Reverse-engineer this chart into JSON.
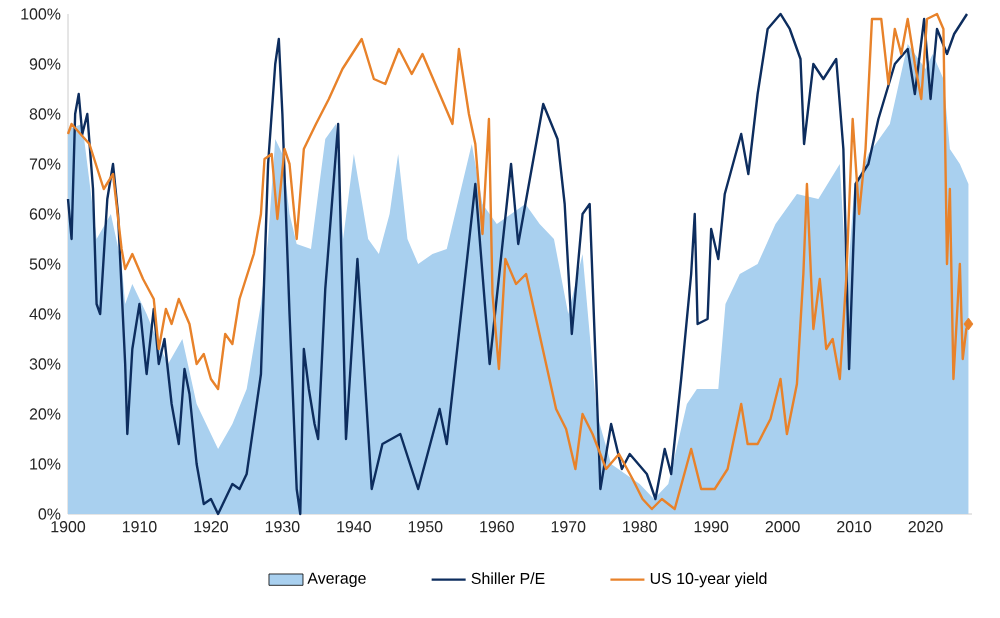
{
  "chart_data": {
    "type": "line",
    "xlim": [
      1900,
      2026.5
    ],
    "ylim": [
      0,
      100
    ],
    "xticks": [
      1900,
      1910,
      1920,
      1930,
      1940,
      1950,
      1960,
      1970,
      1980,
      1990,
      2000,
      2010,
      2020
    ],
    "yticks": [
      {
        "value": 0,
        "label": "0%"
      },
      {
        "value": 10,
        "label": "10%"
      },
      {
        "value": 20,
        "label": "20%"
      },
      {
        "value": 30,
        "label": "30%"
      },
      {
        "value": 40,
        "label": "40%"
      },
      {
        "value": 50,
        "label": "50%"
      },
      {
        "value": 60,
        "label": "60%"
      },
      {
        "value": 70,
        "label": "70%"
      },
      {
        "value": 80,
        "label": "80%"
      },
      {
        "value": 90,
        "label": "90%"
      },
      {
        "value": 100,
        "label": "100%"
      }
    ],
    "legend": "bottom",
    "grid": false,
    "series": [
      {
        "name": "Average",
        "type": "area",
        "color": "#a9d0ef",
        "x": [
          1900,
          1902,
          1904,
          1906,
          1907.5,
          1908,
          1909,
          1911,
          1913,
          1914,
          1916,
          1918,
          1920,
          1921,
          1923,
          1925,
          1927,
          1928,
          1929,
          1930,
          1931,
          1932,
          1934,
          1936,
          1937.5,
          1938.5,
          1940,
          1942,
          1943.5,
          1945,
          1946.2,
          1947.5,
          1949,
          1951,
          1953,
          1955,
          1956.5,
          1958,
          1960,
          1962,
          1964,
          1966,
          1968,
          1970,
          1972,
          1974,
          1976,
          1978,
          1980,
          1982,
          1984,
          1986.6,
          1988,
          1991,
          1992,
          1994,
          1996.5,
          1999,
          2002,
          2005,
          2008,
          2009,
          2010,
          2012,
          2015,
          2017.5,
          2020,
          2021,
          2022.5,
          2023.4,
          2024.8,
          2026
        ],
        "values": [
          77,
          78,
          55,
          60,
          50,
          42,
          46,
          40,
          33,
          30,
          35,
          22,
          16,
          13,
          18,
          25,
          42,
          55,
          75,
          72,
          60,
          54,
          53,
          75,
          78,
          55,
          72,
          55,
          52,
          60,
          72,
          55,
          50,
          52,
          53,
          65,
          74,
          62,
          58,
          60,
          62,
          58,
          55,
          40,
          52,
          20,
          10,
          8,
          6,
          3,
          6,
          22,
          25,
          25,
          42,
          48,
          50,
          58,
          64,
          63,
          70,
          45,
          65,
          72,
          78,
          94,
          89,
          92,
          87,
          73,
          70,
          66
        ]
      },
      {
        "name": "Shiller P/E",
        "color": "#0d2d5e",
        "x": [
          1900,
          1900.5,
          1901,
          1901.5,
          1902,
          1902.7,
          1903.5,
          1904,
          1904.5,
          1905.5,
          1906.3,
          1907,
          1908,
          1908.3,
          1909,
          1910,
          1911,
          1912,
          1912.7,
          1913.5,
          1914.5,
          1915.5,
          1916.3,
          1917,
          1918,
          1919,
          1920,
          1921,
          1922,
          1923,
          1924,
          1925,
          1926,
          1927,
          1928,
          1929,
          1929.5,
          1930,
          1931,
          1932,
          1932.5,
          1933,
          1933.7,
          1934.5,
          1935,
          1936,
          1937.8,
          1938.9,
          1940.5,
          1942.5,
          1944,
          1946.5,
          1949,
          1952,
          1953,
          1957,
          1959,
          1962,
          1963,
          1966.5,
          1968.5,
          1969.5,
          1970.5,
          1972,
          1973,
          1974.5,
          1976,
          1977.5,
          1978.6,
          1981,
          1982.2,
          1983.5,
          1984.4,
          1985.8,
          1987.2,
          1987.7,
          1988.1,
          1989.5,
          1990,
          1991,
          1991.9,
          1994.2,
          1995.2,
          1996.5,
          1997.9,
          1999.7,
          2001,
          2002.5,
          2003,
          2004.3,
          2005.7,
          2007.5,
          2008.5,
          2009.3,
          2010.2,
          2012,
          2013.4,
          2015.7,
          2017.5,
          2018.5,
          2019.8,
          2020.7,
          2021.6,
          2023,
          2024,
          2025.8
        ],
        "values": [
          63,
          55,
          80,
          84,
          76,
          80,
          65,
          42,
          40,
          63,
          70,
          60,
          30,
          16,
          33,
          42,
          28,
          41,
          30,
          35,
          22,
          14,
          29,
          24,
          10,
          2,
          3,
          0,
          3,
          6,
          5,
          8,
          18,
          28,
          70,
          90,
          95,
          80,
          40,
          5,
          0,
          33,
          25,
          18,
          15,
          45,
          78,
          15,
          51,
          5,
          14,
          16,
          5,
          21,
          14,
          66,
          30,
          70,
          54,
          82,
          75,
          62,
          36,
          60,
          62,
          5,
          18,
          9,
          12,
          8,
          3,
          13,
          8,
          27,
          48,
          60,
          38,
          39,
          57,
          51,
          64,
          76,
          68,
          84,
          97,
          100,
          97,
          91,
          74,
          90,
          87,
          91,
          73,
          29,
          66,
          70,
          79,
          90,
          93,
          84,
          99,
          83,
          97,
          92,
          96,
          100
        ]
      },
      {
        "name": "US 10-year yield",
        "color": "#e8822a",
        "x": [
          1900,
          1900.5,
          1903,
          1905,
          1906.3,
          1907.5,
          1908,
          1909,
          1910.5,
          1912,
          1912.7,
          1913.7,
          1914.5,
          1915.5,
          1917,
          1918,
          1919,
          1920,
          1921,
          1922,
          1923,
          1924,
          1926,
          1927,
          1927.5,
          1928.5,
          1929.3,
          1930.3,
          1931,
          1932,
          1933,
          1934.7,
          1936.5,
          1938.4,
          1941.1,
          1942.8,
          1944.4,
          1946.3,
          1948.1,
          1949.6,
          1951.4,
          1953.8,
          1954.7,
          1956.1,
          1957,
          1958,
          1958.9,
          1959.4,
          1960.3,
          1961.2,
          1962.7,
          1964.1,
          1965.5,
          1966.9,
          1968.3,
          1969.7,
          1971,
          1972,
          1973.4,
          1975.3,
          1977.1,
          1979,
          1980.4,
          1981.7,
          1983.1,
          1984.9,
          1987.2,
          1988.6,
          1990.5,
          1992.3,
          1994.2,
          1995.1,
          1996.5,
          1998.3,
          1999.7,
          2000.6,
          2002,
          2002.9,
          2003.4,
          2004.3,
          2005.2,
          2006.1,
          2007,
          2008,
          2008.9,
          2009.8,
          2010.7,
          2011.6,
          2012.5,
          2013.8,
          2014.8,
          2015.7,
          2016.6,
          2017.5,
          2018.5,
          2019.4,
          2020.2,
          2021.6,
          2022.5,
          2023,
          2023.4,
          2023.9,
          2024.8,
          2025.2,
          2025.7,
          2026
        ],
        "values": [
          76,
          78,
          74,
          65,
          68,
          53,
          49,
          52,
          47,
          43,
          33,
          41,
          38,
          43,
          38,
          30,
          32,
          27,
          25,
          36,
          34,
          43,
          52,
          60,
          71,
          72,
          59,
          73,
          70,
          55,
          73,
          78,
          83,
          89,
          95,
          87,
          86,
          93,
          88,
          92,
          86,
          78,
          93,
          80,
          74,
          56,
          79,
          44,
          29,
          51,
          46,
          48,
          39,
          30,
          21,
          17,
          9,
          20,
          16,
          9,
          12,
          7,
          3,
          1,
          3,
          1,
          13,
          5,
          5,
          9,
          22,
          14,
          14,
          19,
          27,
          16,
          26,
          48,
          66,
          37,
          47,
          33,
          35,
          27,
          47,
          79,
          60,
          73,
          99,
          99,
          86,
          97,
          92,
          99,
          90,
          83,
          99,
          100,
          97,
          50,
          65,
          27,
          50,
          31,
          37,
          38
        ]
      },
      {
        "type": "scatter",
        "color": "#e8822a",
        "marker": "diamond",
        "x": [
          2026
        ],
        "values": [
          38
        ]
      }
    ]
  }
}
